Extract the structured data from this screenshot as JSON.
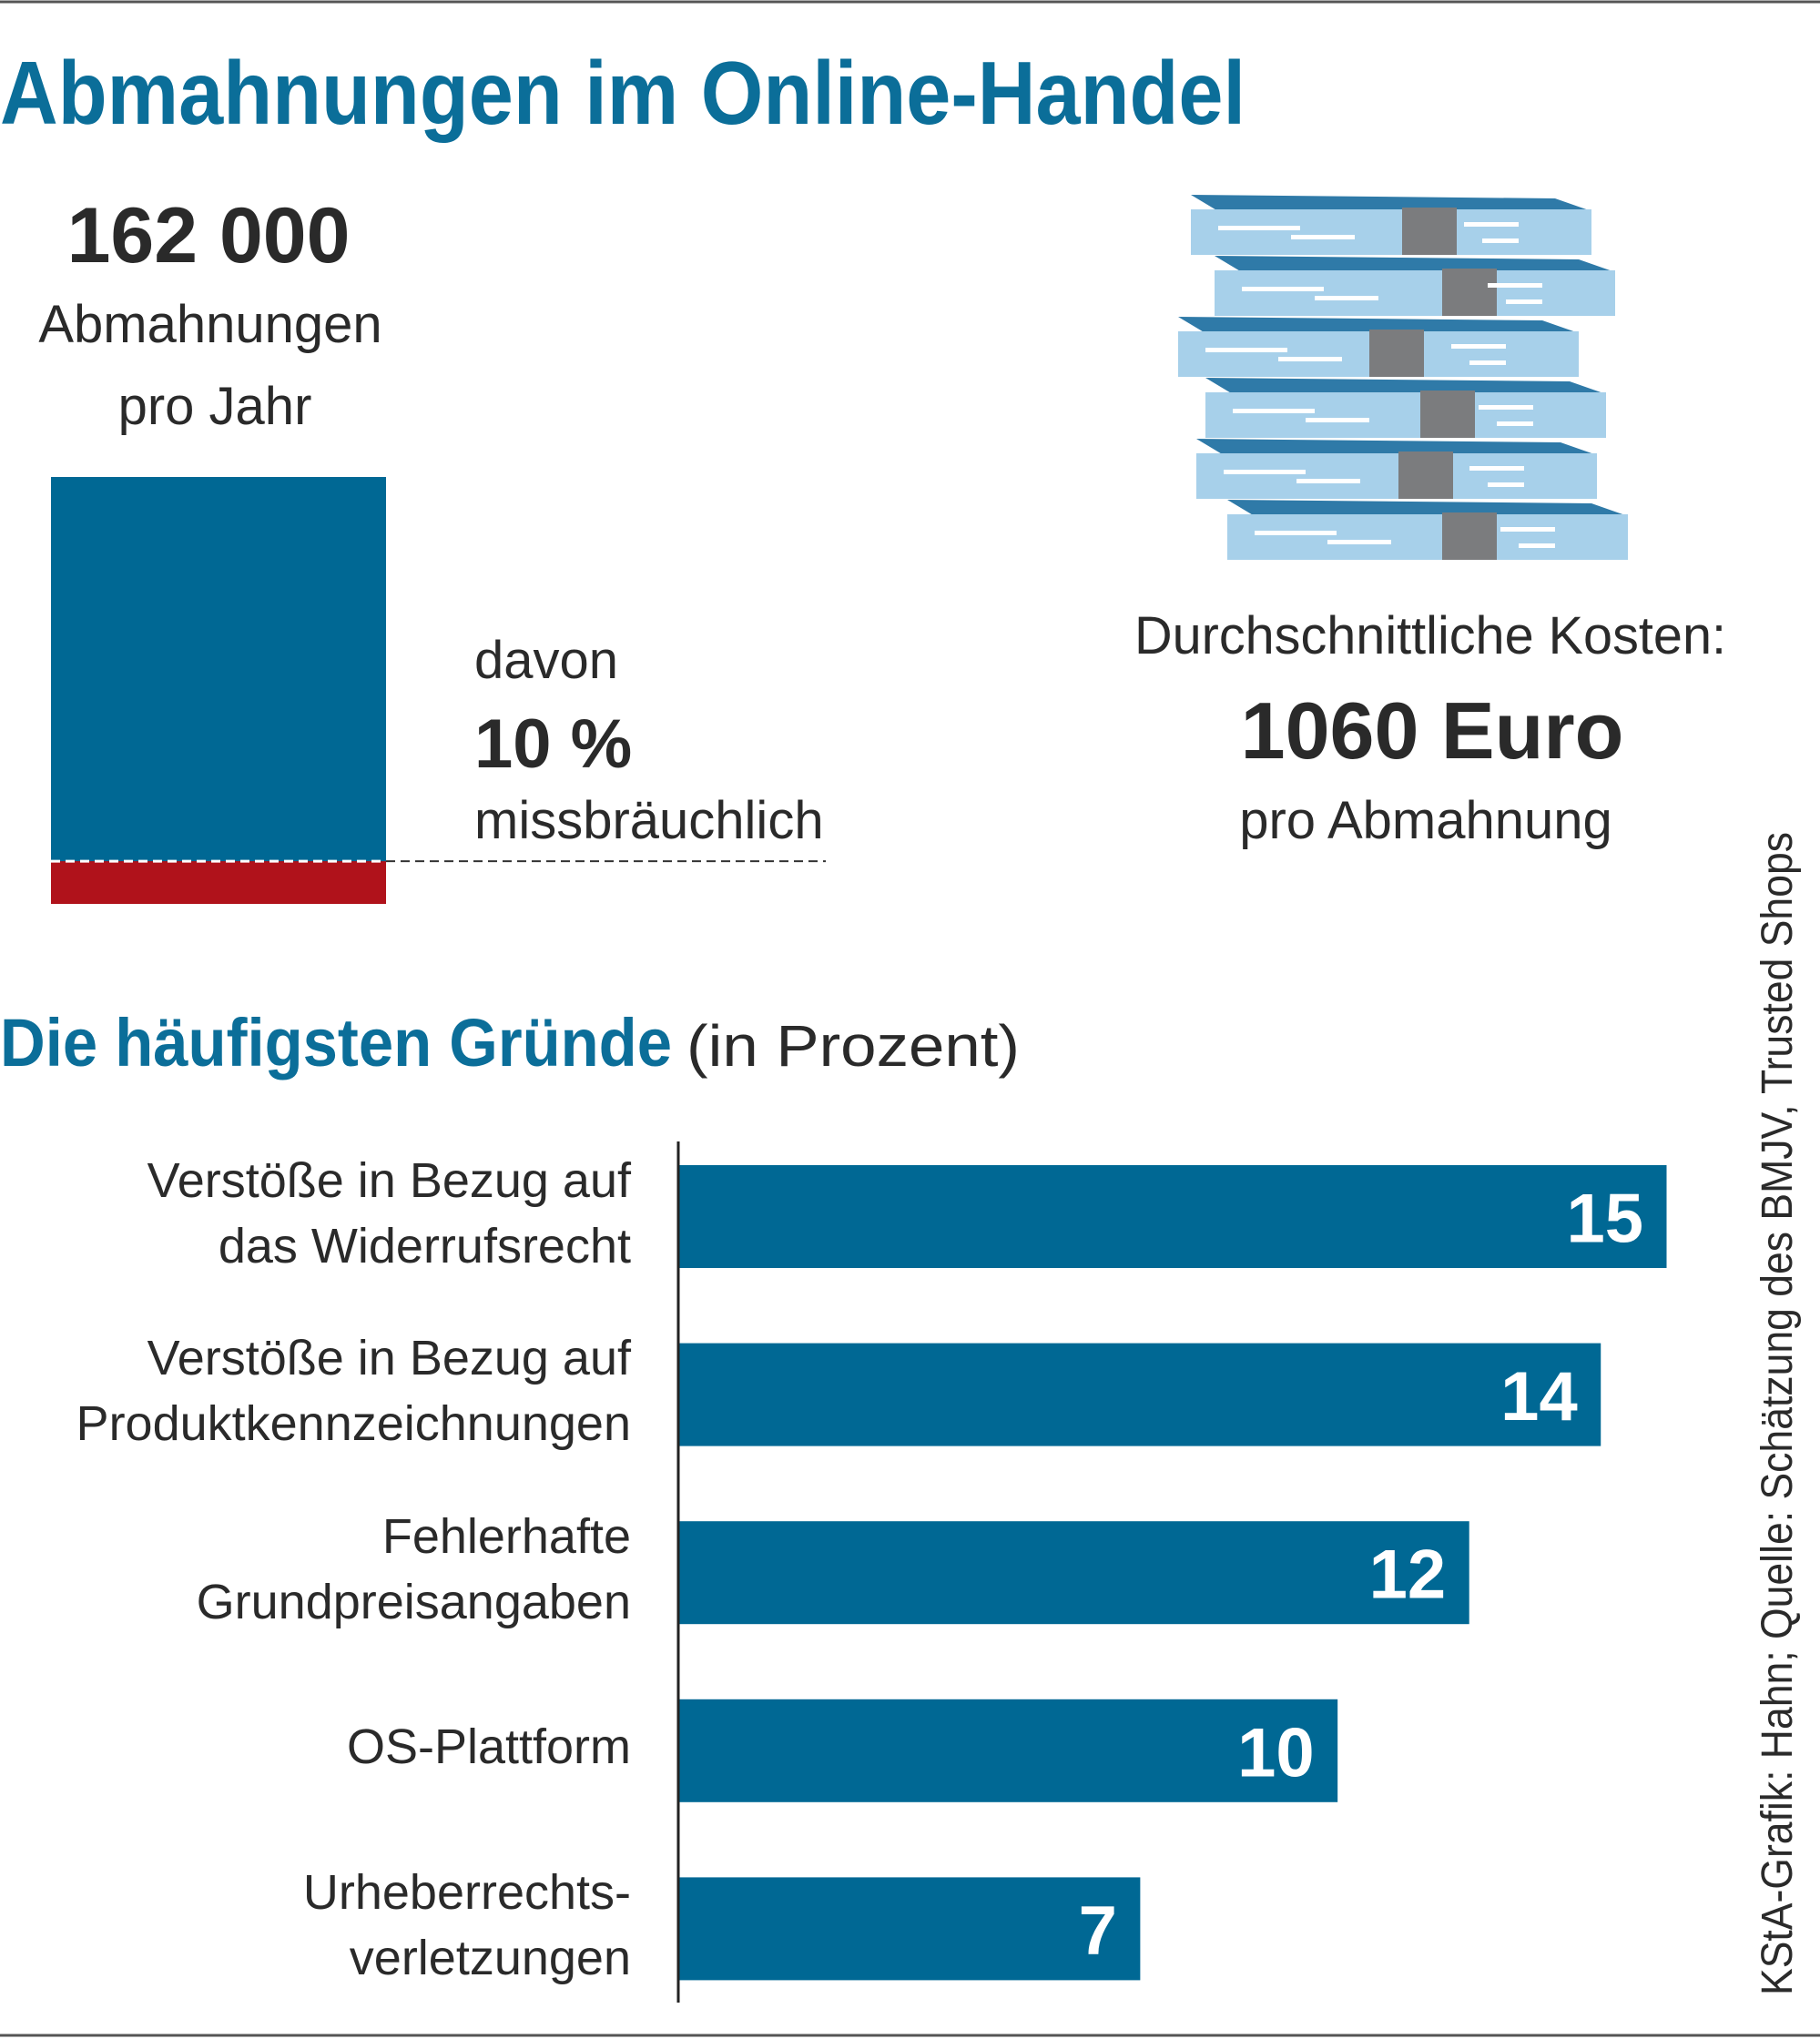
{
  "title": "Abmahnungen im Online-Handel",
  "chart_data": [
    {
      "type": "share",
      "total_label": "162 000",
      "total_lines": [
        "Abmahnungen",
        "pro Jahr"
      ],
      "intro": "davon",
      "value": 10,
      "value_label": "10 %",
      "note": "missbräuchlich",
      "color": "#006894",
      "share_color": "#b0121b"
    },
    {
      "type": "bar",
      "title": "Die häufigsten Gründe",
      "unit_label": "(in Prozent)",
      "categories": [
        "Verstöße in Bezug auf\ndas Widerrufsrecht",
        "Verstöße in Bezug auf\nProduktkennzeichnungen",
        "Fehlerhafte\nGrundpreisangaben",
        "OS-Plattform",
        "Urheberrechts-\nverletzungen"
      ],
      "values": [
        15,
        14,
        12,
        10,
        7
      ],
      "color": "#006894"
    }
  ],
  "costs": {
    "label": "Durchschnittliche Kosten:",
    "value": "1060 Euro",
    "unit": "pro Abmahnung"
  },
  "source": "KStA-Grafik: Hahn; Quelle: Schätzung des BMJV, Trusted Shops"
}
